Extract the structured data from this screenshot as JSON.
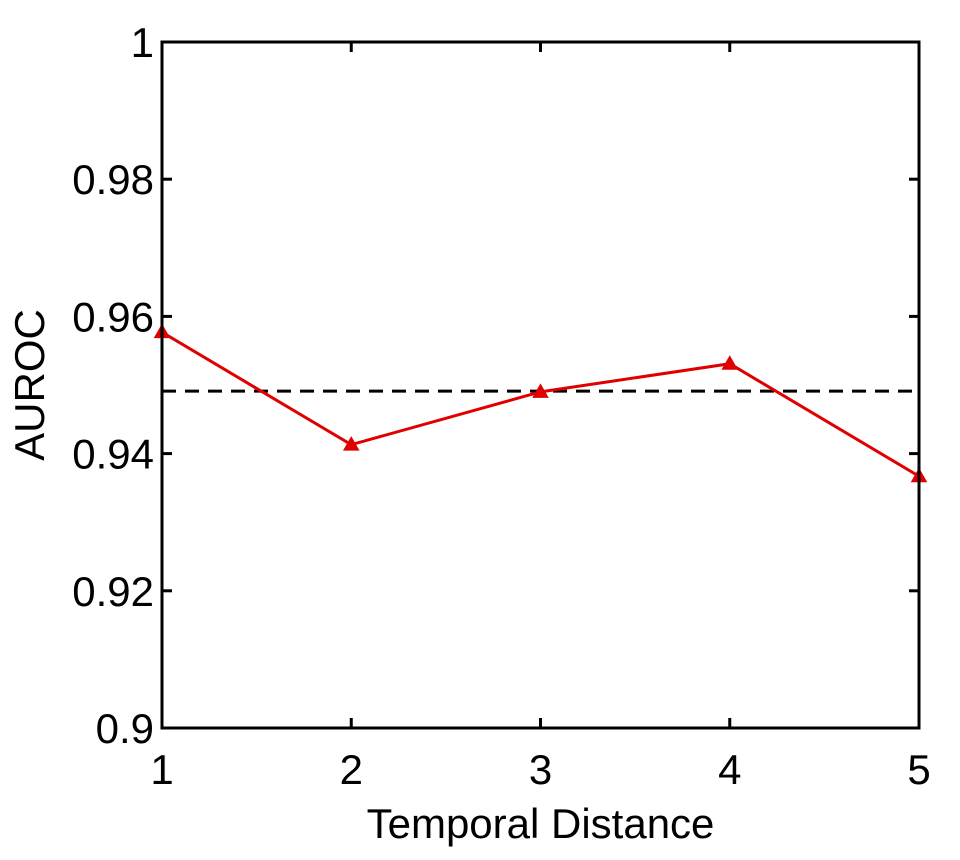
{
  "chart_data": {
    "type": "line",
    "title": "",
    "xlabel": "Temporal Distance",
    "ylabel": "AUROC",
    "xlim": [
      1,
      5
    ],
    "ylim": [
      0.9,
      1.0
    ],
    "x_ticks": [
      1,
      2,
      3,
      4,
      5
    ],
    "x_tick_labels": [
      "1",
      "2",
      "3",
      "4",
      "5"
    ],
    "y_ticks": [
      0.9,
      0.92,
      0.94,
      0.96,
      0.98,
      1.0
    ],
    "y_tick_labels": [
      "0.9",
      "0.92",
      "0.94",
      "0.96",
      "0.98",
      "1"
    ],
    "grid": false,
    "legend": "none",
    "series": [
      {
        "x": [
          1,
          2,
          3,
          4,
          5
        ],
        "values": [
          0.9577,
          0.9413,
          0.949,
          0.9531,
          0.9367
        ],
        "color": "#e00000",
        "marker": "triangle",
        "line_style": "solid"
      }
    ],
    "reference_lines": [
      {
        "y": 0.9491,
        "color": "#000000",
        "line_style": "dashed"
      }
    ]
  }
}
